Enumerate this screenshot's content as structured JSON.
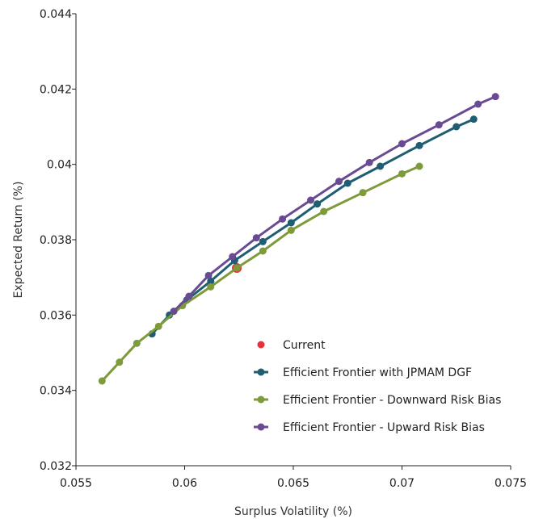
{
  "chart_data": {
    "type": "scatter",
    "xlabel": "Surplus Volatility (%)",
    "ylabel": "Expected Return (%)",
    "xlim": [
      0.055,
      0.075
    ],
    "ylim": [
      0.032,
      0.044
    ],
    "xticks": [
      0.055,
      0.06,
      0.065,
      0.07,
      0.075
    ],
    "xtick_labels": [
      "0.055",
      "0.06",
      "0.065",
      "0.07",
      "0.075"
    ],
    "yticks": [
      0.032,
      0.034,
      0.036,
      0.038,
      0.04,
      0.042,
      0.044
    ],
    "ytick_labels": [
      "0.032",
      "0.034",
      "0.036",
      "0.038",
      "0.04",
      "0.042",
      "0.044"
    ],
    "grid": false,
    "legend_position": "bottom-right",
    "series": [
      {
        "name": "Current",
        "color": "#e8303a",
        "marker_only": true,
        "points": [
          [
            0.0624,
            0.03725
          ]
        ]
      },
      {
        "name": "Efficient Frontier with JPMAM DGF",
        "color": "#1f5d73",
        "points": [
          [
            0.0585,
            0.0355
          ],
          [
            0.0593,
            0.036
          ],
          [
            0.0601,
            0.0364
          ],
          [
            0.0612,
            0.0369
          ],
          [
            0.0623,
            0.03745
          ],
          [
            0.0636,
            0.03795
          ],
          [
            0.0649,
            0.03845
          ],
          [
            0.0661,
            0.03895
          ],
          [
            0.0675,
            0.0395
          ],
          [
            0.069,
            0.03995
          ],
          [
            0.0708,
            0.0405
          ],
          [
            0.0725,
            0.041
          ],
          [
            0.0733,
            0.0412
          ]
        ]
      },
      {
        "name": "Efficient Frontier - Downward Risk Bias",
        "color": "#7e9a3a",
        "points": [
          [
            0.0562,
            0.03425
          ],
          [
            0.057,
            0.03475
          ],
          [
            0.0578,
            0.03525
          ],
          [
            0.0588,
            0.0357
          ],
          [
            0.0599,
            0.03625
          ],
          [
            0.0612,
            0.03675
          ],
          [
            0.0624,
            0.03725
          ],
          [
            0.0636,
            0.0377
          ],
          [
            0.0649,
            0.03825
          ],
          [
            0.0664,
            0.03875
          ],
          [
            0.0682,
            0.03925
          ],
          [
            0.07,
            0.03975
          ],
          [
            0.0708,
            0.03995
          ]
        ]
      },
      {
        "name": "Efficient Frontier - Upward Risk Bias",
        "color": "#6a4a93",
        "points": [
          [
            0.0595,
            0.0361
          ],
          [
            0.0602,
            0.0365
          ],
          [
            0.0611,
            0.03705
          ],
          [
            0.0622,
            0.03755
          ],
          [
            0.0633,
            0.03805
          ],
          [
            0.0645,
            0.03855
          ],
          [
            0.0658,
            0.03905
          ],
          [
            0.0671,
            0.03955
          ],
          [
            0.0685,
            0.04005
          ],
          [
            0.07,
            0.04055
          ],
          [
            0.0717,
            0.04105
          ],
          [
            0.0735,
            0.0416
          ],
          [
            0.0743,
            0.0418
          ]
        ]
      }
    ]
  }
}
